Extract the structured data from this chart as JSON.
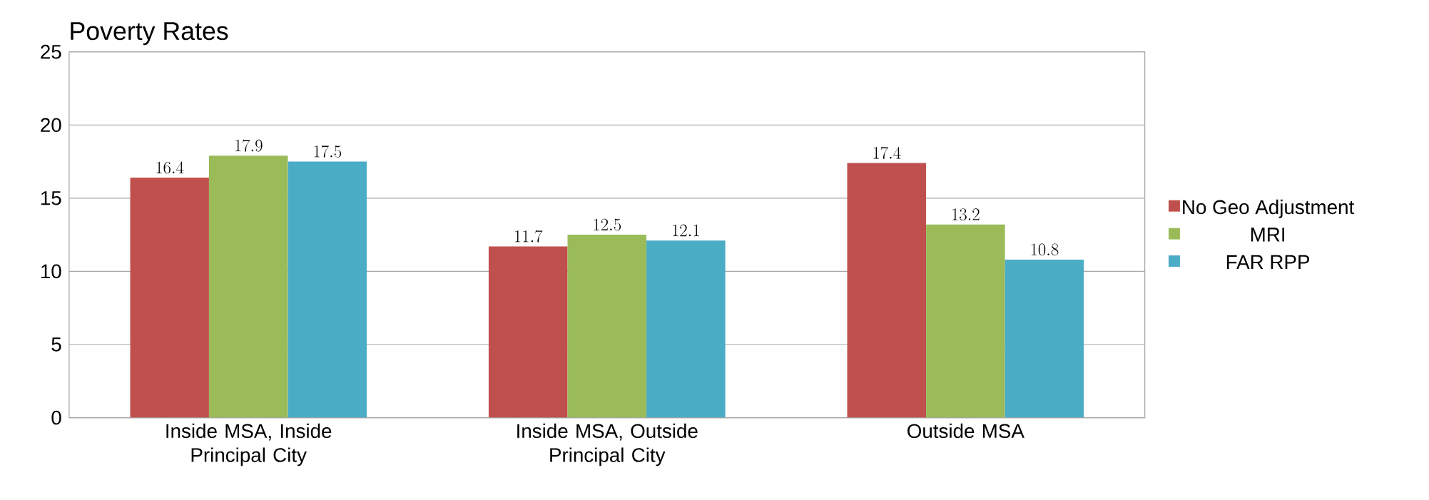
{
  "chart_data": {
    "type": "bar",
    "title": "Poverty Rates",
    "categories": [
      "Inside MSA, Inside Principal City",
      "Inside MSA, Outside Principal City",
      "Outside MSA"
    ],
    "series": [
      {
        "name": "No Geo Adjustment",
        "color": "#c0504d",
        "values": [
          16.4,
          11.7,
          17.4
        ]
      },
      {
        "name": "MRI",
        "color": "#9bbb59",
        "values": [
          17.9,
          12.5,
          13.2
        ]
      },
      {
        "name": "FAR RPP",
        "color": "#4bacc6",
        "values": [
          17.5,
          12.1,
          10.8
        ]
      }
    ],
    "ylim": [
      0,
      25
    ],
    "yticks": [
      0,
      5,
      10,
      15,
      20,
      25
    ],
    "grid": "y",
    "legend": "right",
    "data_labels": true
  }
}
